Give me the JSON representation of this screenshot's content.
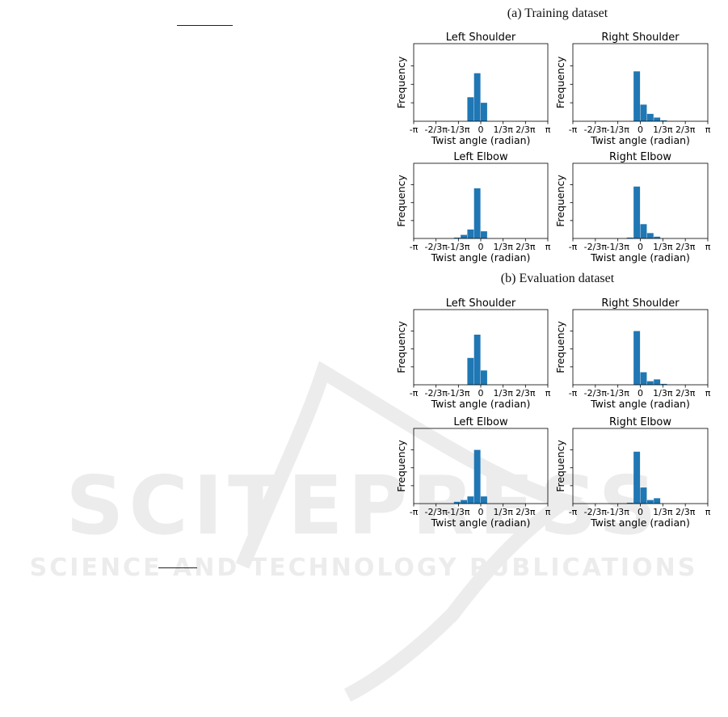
{
  "colors": {
    "bar": "#1f77b4",
    "axis": "#000000",
    "watermark": "#e3e3e3"
  },
  "sections": [
    {
      "title": "(a) Training dataset"
    },
    {
      "title": "(b) Evaluation dataset"
    }
  ],
  "watermark": {
    "line1": "SCITEPRESS",
    "line2": "SCIENCE AND TECHNOLOGY PUBLICATIONS"
  },
  "chart_data": [
    {
      "type": "bar",
      "title": "Left Shoulder",
      "dataset": "(a) Training dataset",
      "xlabel": "Twist angle (radian)",
      "ylabel": "Frequency",
      "xticks": [
        "-π",
        "-2/3π",
        "-1/3π",
        "0",
        "1/3π",
        "2/3π",
        "π"
      ],
      "xlim": [
        -3.1416,
        3.1416
      ],
      "ylim": [
        0,
        0.42
      ],
      "bin_width": 0.3142,
      "bins": [
        [
          -0.628,
          0.13
        ],
        [
          -0.314,
          0.26
        ],
        [
          0.0,
          0.1
        ]
      ]
    },
    {
      "type": "bar",
      "title": "Right Shoulder",
      "dataset": "(a) Training dataset",
      "xlabel": "Twist angle (radian)",
      "ylabel": "Frequency",
      "xticks": [
        "-π",
        "-2/3π",
        "-1/3π",
        "0",
        "1/3π",
        "2/3π",
        "π"
      ],
      "xlim": [
        -3.1416,
        3.1416
      ],
      "ylim": [
        0,
        0.42
      ],
      "bin_width": 0.3142,
      "bins": [
        [
          -0.314,
          0.27
        ],
        [
          0.0,
          0.09
        ],
        [
          0.314,
          0.04
        ],
        [
          0.628,
          0.02
        ],
        [
          0.942,
          0.005
        ]
      ]
    },
    {
      "type": "bar",
      "title": "Left Elbow",
      "dataset": "(a) Training dataset",
      "xlabel": "Twist angle (radian)",
      "ylabel": "Frequency",
      "xticks": [
        "-π",
        "-2/3π",
        "-1/3π",
        "0",
        "1/3π",
        "2/3π",
        "π"
      ],
      "xlim": [
        -3.1416,
        3.1416
      ],
      "ylim": [
        0,
        0.42
      ],
      "bin_width": 0.3142,
      "bins": [
        [
          -1.257,
          0.005
        ],
        [
          -0.942,
          0.02
        ],
        [
          -0.628,
          0.05
        ],
        [
          -0.314,
          0.28
        ],
        [
          0.0,
          0.04
        ]
      ]
    },
    {
      "type": "bar",
      "title": "Right Elbow",
      "dataset": "(a) Training dataset",
      "xlabel": "Twist angle (radian)",
      "ylabel": "Frequency",
      "xticks": [
        "-π",
        "-2/3π",
        "-1/3π",
        "0",
        "1/3π",
        "2/3π",
        "π"
      ],
      "xlim": [
        -3.1416,
        3.1416
      ],
      "ylim": [
        0,
        0.42
      ],
      "bin_width": 0.3142,
      "bins": [
        [
          -0.628,
          0.005
        ],
        [
          -0.314,
          0.29
        ],
        [
          0.0,
          0.08
        ],
        [
          0.314,
          0.03
        ],
        [
          0.628,
          0.01
        ]
      ]
    },
    {
      "type": "bar",
      "title": "Left Shoulder",
      "dataset": "(b) Evaluation dataset",
      "xlabel": "Twist angle (radian)",
      "ylabel": "Frequency",
      "xticks": [
        "-π",
        "-2/3π",
        "-1/3π",
        "0",
        "1/3π",
        "2/3π",
        "π"
      ],
      "xlim": [
        -3.1416,
        3.1416
      ],
      "ylim": [
        0,
        0.42
      ],
      "bin_width": 0.3142,
      "bins": [
        [
          -0.628,
          0.15
        ],
        [
          -0.314,
          0.28
        ],
        [
          0.0,
          0.08
        ]
      ]
    },
    {
      "type": "bar",
      "title": "Right Shoulder",
      "dataset": "(b) Evaluation dataset",
      "xlabel": "Twist angle (radian)",
      "ylabel": "Frequency",
      "xticks": [
        "-π",
        "-2/3π",
        "-1/3π",
        "0",
        "1/3π",
        "2/3π",
        "π"
      ],
      "xlim": [
        -3.1416,
        3.1416
      ],
      "ylim": [
        0,
        0.42
      ],
      "bin_width": 0.3142,
      "bins": [
        [
          -0.314,
          0.3
        ],
        [
          0.0,
          0.07
        ],
        [
          0.314,
          0.02
        ],
        [
          0.628,
          0.03
        ],
        [
          0.942,
          0.005
        ]
      ]
    },
    {
      "type": "bar",
      "title": "Left Elbow",
      "dataset": "(b) Evaluation dataset",
      "xlabel": "Twist angle (radian)",
      "ylabel": "Frequency",
      "xticks": [
        "-π",
        "-2/3π",
        "-1/3π",
        "0",
        "1/3π",
        "2/3π",
        "π"
      ],
      "xlim": [
        -3.1416,
        3.1416
      ],
      "ylim": [
        0,
        0.42
      ],
      "bin_width": 0.3142,
      "bins": [
        [
          -1.257,
          0.01
        ],
        [
          -0.942,
          0.02
        ],
        [
          -0.628,
          0.04
        ],
        [
          -0.314,
          0.3
        ],
        [
          0.0,
          0.04
        ]
      ]
    },
    {
      "type": "bar",
      "title": "Right Elbow",
      "dataset": "(b) Evaluation dataset",
      "xlabel": "Twist angle (radian)",
      "ylabel": "Frequency",
      "xticks": [
        "-π",
        "-2/3π",
        "-1/3π",
        "0",
        "1/3π",
        "2/3π",
        "π"
      ],
      "xlim": [
        -3.1416,
        3.1416
      ],
      "ylim": [
        0,
        0.42
      ],
      "bin_width": 0.3142,
      "bins": [
        [
          -0.628,
          0.005
        ],
        [
          -0.314,
          0.29
        ],
        [
          0.0,
          0.09
        ],
        [
          0.314,
          0.02
        ],
        [
          0.628,
          0.03
        ]
      ]
    }
  ]
}
